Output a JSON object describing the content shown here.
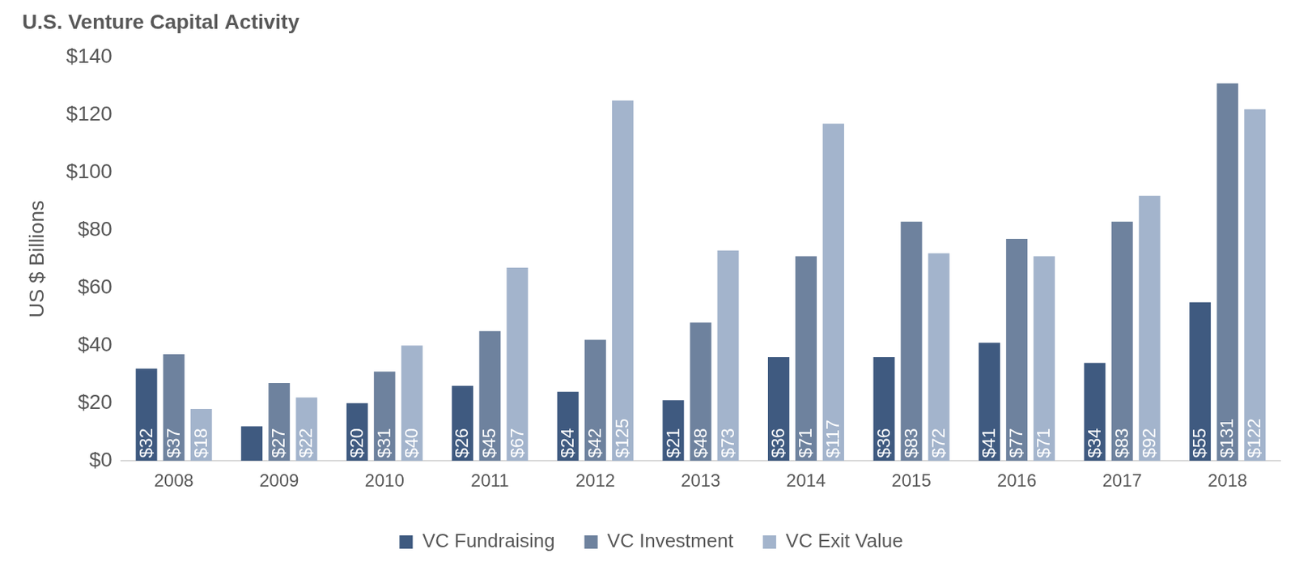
{
  "chart_data": {
    "type": "bar",
    "title": "U.S. Venture Capital Activity",
    "y_label": "US $ Billions",
    "categories": [
      "2008",
      "2009",
      "2010",
      "2011",
      "2012",
      "2013",
      "2014",
      "2015",
      "2016",
      "2017",
      "2018"
    ],
    "series": [
      {
        "name": "VC Fundraising",
        "color": "#3f5a80",
        "values": [
          32,
          12,
          20,
          26,
          24,
          21,
          36,
          36,
          41,
          34,
          55
        ],
        "value_labels": [
          "$32",
          null,
          "$20",
          "$26",
          "$24",
          "$21",
          "$36",
          "$36",
          "$41",
          "$34",
          "$55"
        ]
      },
      {
        "name": "VC Investment",
        "color": "#6e829e",
        "values": [
          37,
          27,
          31,
          45,
          42,
          48,
          71,
          83,
          77,
          83,
          131
        ],
        "value_labels": [
          "$37",
          "$27",
          "$31",
          "$45",
          "$42",
          "$48",
          "$71",
          "$83",
          "$77",
          "$83",
          "$131"
        ]
      },
      {
        "name": "VC Exit Value",
        "color": "#a3b4cc",
        "values": [
          18,
          22,
          40,
          67,
          125,
          73,
          117,
          72,
          71,
          92,
          122
        ],
        "value_labels": [
          "$18",
          "$22",
          "$40",
          "$67",
          "$125",
          "$73",
          "$117",
          "$72",
          "$71",
          "$92",
          "$122"
        ]
      }
    ],
    "ylim": [
      0,
      140
    ],
    "yticks": [
      {
        "value": 0,
        "label": "$0"
      },
      {
        "value": 20,
        "label": "$20"
      },
      {
        "value": 40,
        "label": "$40"
      },
      {
        "value": 60,
        "label": "$60"
      },
      {
        "value": 80,
        "label": "$80"
      },
      {
        "value": 100,
        "label": "$100"
      },
      {
        "value": 120,
        "label": "$120"
      },
      {
        "value": 140,
        "label": "$140"
      }
    ],
    "grid": false,
    "legend": "bottom",
    "data_labels": true
  }
}
